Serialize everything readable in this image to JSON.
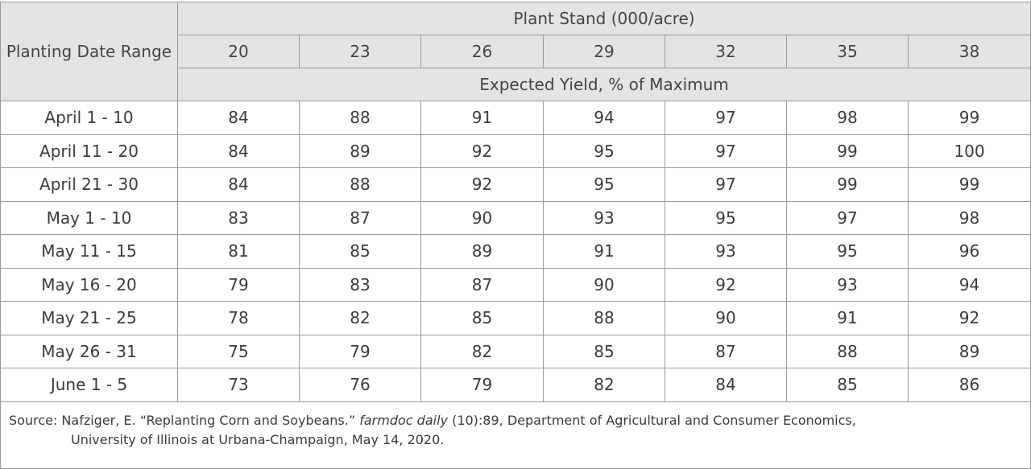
{
  "table": {
    "corner_header": "Planting Date Range",
    "group_header": "Plant Stand (000/acre)",
    "subheader": "Expected Yield, % of Maximum",
    "columns": [
      "20",
      "23",
      "26",
      "29",
      "32",
      "35",
      "38"
    ],
    "rows": [
      {
        "label": "April 1 - 10",
        "values": [
          "84",
          "88",
          "91",
          "94",
          "97",
          "98",
          "99"
        ]
      },
      {
        "label": "April 11 - 20",
        "values": [
          "84",
          "89",
          "92",
          "95",
          "97",
          "99",
          "100"
        ]
      },
      {
        "label": "April 21 - 30",
        "values": [
          "84",
          "88",
          "92",
          "95",
          "97",
          "99",
          "99"
        ]
      },
      {
        "label": "May 1 - 10",
        "values": [
          "83",
          "87",
          "90",
          "93",
          "95",
          "97",
          "98"
        ]
      },
      {
        "label": "May 11 - 15",
        "values": [
          "81",
          "85",
          "89",
          "91",
          "93",
          "95",
          "96"
        ]
      },
      {
        "label": "May 16 - 20",
        "values": [
          "79",
          "83",
          "87",
          "90",
          "92",
          "93",
          "94"
        ]
      },
      {
        "label": "May 21 - 25",
        "values": [
          "78",
          "82",
          "85",
          "88",
          "90",
          "91",
          "92"
        ]
      },
      {
        "label": "May 26 - 31",
        "values": [
          "75",
          "79",
          "82",
          "85",
          "87",
          "88",
          "89"
        ]
      },
      {
        "label": "June 1 - 5",
        "values": [
          "73",
          "76",
          "79",
          "82",
          "84",
          "85",
          "86"
        ]
      }
    ]
  },
  "source": {
    "prefix": "Source: Nafziger, E. “Replanting Corn and Soybeans.” ",
    "italic": "farmdoc daily",
    "suffix": " (10):89, Department of Agricultural and Consumer Economics,",
    "line2": "University of Illinois at Urbana-Champaign, May 14, 2020."
  },
  "colors": {
    "header_bg": "#e4e4e4",
    "border": "#9a9a9a",
    "text": "#3b3b3b"
  }
}
